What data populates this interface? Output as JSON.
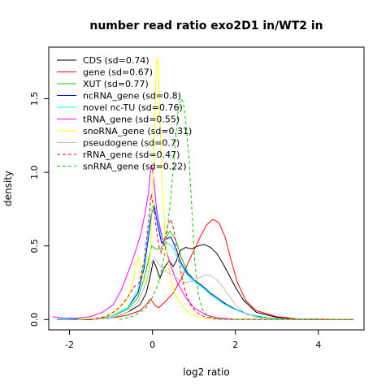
{
  "chart_data": {
    "type": "line",
    "title": "number read ratio exo2D1 in/WT2 in",
    "xlabel": "log2 ratio",
    "ylabel": "density",
    "xlim": [
      -2.5,
      5.1
    ],
    "ylim": [
      -0.07,
      1.85
    ],
    "x_ticks": [
      -2,
      0,
      2,
      4
    ],
    "x_tick_labels": [
      "-2",
      "0",
      "2",
      "4"
    ],
    "y_ticks": [
      0.0,
      0.5,
      1.0,
      1.5
    ],
    "y_tick_labels": [
      "0.0",
      "0.5",
      "1.0",
      "1.5"
    ],
    "grid": false,
    "legend_position": "top-left",
    "series": [
      {
        "name": "CDS (sd=0.74)",
        "color": "#000000",
        "dash": "solid",
        "points": [
          [
            -2.3,
            0
          ],
          [
            -1.5,
            0
          ],
          [
            -1,
            0.01
          ],
          [
            -0.6,
            0.05
          ],
          [
            -0.3,
            0.1
          ],
          [
            -0.15,
            0.18
          ],
          [
            -0.05,
            0.3
          ],
          [
            0.02,
            0.4
          ],
          [
            0.1,
            0.35
          ],
          [
            0.18,
            0.28
          ],
          [
            0.28,
            0.35
          ],
          [
            0.4,
            0.4
          ],
          [
            0.5,
            0.36
          ],
          [
            0.58,
            0.4
          ],
          [
            0.68,
            0.47
          ],
          [
            0.8,
            0.49
          ],
          [
            0.95,
            0.48
          ],
          [
            1.1,
            0.5
          ],
          [
            1.25,
            0.51
          ],
          [
            1.4,
            0.49
          ],
          [
            1.55,
            0.45
          ],
          [
            1.7,
            0.38
          ],
          [
            1.85,
            0.3
          ],
          [
            2.0,
            0.22
          ],
          [
            2.2,
            0.13
          ],
          [
            2.5,
            0.05
          ],
          [
            3,
            0.015
          ],
          [
            3.5,
            0.004
          ],
          [
            4.85,
            0
          ]
        ]
      },
      {
        "name": "gene (sd=0.67)",
        "color": "#ff0000",
        "dash": "solid",
        "points": [
          [
            -2.3,
            0
          ],
          [
            -1.5,
            0.005
          ],
          [
            -1,
            0.01
          ],
          [
            -0.6,
            0.03
          ],
          [
            -0.3,
            0.06
          ],
          [
            -0.15,
            0.1
          ],
          [
            -0.05,
            0.14
          ],
          [
            0.05,
            0.1
          ],
          [
            0.15,
            0.08
          ],
          [
            0.3,
            0.12
          ],
          [
            0.5,
            0.18
          ],
          [
            0.7,
            0.28
          ],
          [
            0.85,
            0.38
          ],
          [
            1.0,
            0.47
          ],
          [
            1.15,
            0.56
          ],
          [
            1.3,
            0.64
          ],
          [
            1.45,
            0.68
          ],
          [
            1.6,
            0.66
          ],
          [
            1.75,
            0.56
          ],
          [
            1.9,
            0.4
          ],
          [
            2.05,
            0.25
          ],
          [
            2.25,
            0.13
          ],
          [
            2.5,
            0.06
          ],
          [
            3,
            0.02
          ],
          [
            3.5,
            0.005
          ],
          [
            4.85,
            0
          ]
        ]
      },
      {
        "name": "XUT (sd=0.77)",
        "color": "#00cd00",
        "dash": "solid",
        "points": [
          [
            -2.3,
            0
          ],
          [
            -1.5,
            0.005
          ],
          [
            -1,
            0.02
          ],
          [
            -0.6,
            0.07
          ],
          [
            -0.35,
            0.15
          ],
          [
            -0.2,
            0.28
          ],
          [
            -0.1,
            0.4
          ],
          [
            -0.02,
            0.5
          ],
          [
            0.08,
            0.48
          ],
          [
            0.2,
            0.48
          ],
          [
            0.32,
            0.56
          ],
          [
            0.42,
            0.6
          ],
          [
            0.55,
            0.55
          ],
          [
            0.7,
            0.42
          ],
          [
            0.85,
            0.32
          ],
          [
            1.0,
            0.27
          ],
          [
            1.2,
            0.22
          ],
          [
            1.4,
            0.17
          ],
          [
            1.6,
            0.13
          ],
          [
            1.8,
            0.1
          ],
          [
            2.0,
            0.07
          ],
          [
            2.3,
            0.035
          ],
          [
            2.7,
            0.015
          ],
          [
            3.2,
            0.004
          ],
          [
            4.85,
            0
          ]
        ]
      },
      {
        "name": "ncRNA_gene (sd=0.8)",
        "color": "#0000ff",
        "dash": "solid",
        "points": [
          [
            -2.3,
            0
          ],
          [
            -1.5,
            0.005
          ],
          [
            -1,
            0.02
          ],
          [
            -0.6,
            0.08
          ],
          [
            -0.35,
            0.18
          ],
          [
            -0.2,
            0.35
          ],
          [
            -0.1,
            0.55
          ],
          [
            -0.02,
            0.72
          ],
          [
            0.05,
            0.76
          ],
          [
            0.12,
            0.65
          ],
          [
            0.22,
            0.52
          ],
          [
            0.35,
            0.55
          ],
          [
            0.45,
            0.56
          ],
          [
            0.58,
            0.47
          ],
          [
            0.7,
            0.38
          ],
          [
            0.85,
            0.31
          ],
          [
            1.0,
            0.27
          ],
          [
            1.2,
            0.23
          ],
          [
            1.4,
            0.18
          ],
          [
            1.6,
            0.14
          ],
          [
            1.8,
            0.1
          ],
          [
            2.0,
            0.07
          ],
          [
            2.3,
            0.035
          ],
          [
            2.7,
            0.012
          ],
          [
            3.2,
            0.004
          ],
          [
            4.85,
            0
          ]
        ]
      },
      {
        "name": "novel nc-TU (sd=0.76)",
        "color": "#00ffff",
        "dash": "solid",
        "points": [
          [
            -2.3,
            0
          ],
          [
            -1.5,
            0.005
          ],
          [
            -1,
            0.02
          ],
          [
            -0.6,
            0.08
          ],
          [
            -0.35,
            0.2
          ],
          [
            -0.2,
            0.38
          ],
          [
            -0.1,
            0.6
          ],
          [
            -0.02,
            0.75
          ],
          [
            0.05,
            0.78
          ],
          [
            0.12,
            0.68
          ],
          [
            0.22,
            0.55
          ],
          [
            0.35,
            0.52
          ],
          [
            0.48,
            0.5
          ],
          [
            0.6,
            0.42
          ],
          [
            0.75,
            0.34
          ],
          [
            0.9,
            0.28
          ],
          [
            1.1,
            0.24
          ],
          [
            1.3,
            0.2
          ],
          [
            1.5,
            0.15
          ],
          [
            1.7,
            0.11
          ],
          [
            1.9,
            0.08
          ],
          [
            2.2,
            0.045
          ],
          [
            2.6,
            0.015
          ],
          [
            3.2,
            0.004
          ],
          [
            4.85,
            0
          ]
        ]
      },
      {
        "name": "tRNA_gene (sd=0.55)",
        "color": "#ff00ff",
        "dash": "solid",
        "points": [
          [
            -2.4,
            0.02
          ],
          [
            -2.2,
            0.01
          ],
          [
            -1.8,
            0.01
          ],
          [
            -1.5,
            0.02
          ],
          [
            -1.2,
            0.05
          ],
          [
            -0.95,
            0.1
          ],
          [
            -0.75,
            0.2
          ],
          [
            -0.55,
            0.35
          ],
          [
            -0.4,
            0.47
          ],
          [
            -0.28,
            0.58
          ],
          [
            -0.18,
            0.72
          ],
          [
            -0.1,
            0.85
          ],
          [
            -0.05,
            1.0
          ],
          [
            -0.02,
            1.05
          ],
          [
            0.03,
            0.95
          ],
          [
            0.1,
            0.75
          ],
          [
            0.2,
            0.6
          ],
          [
            0.3,
            0.5
          ],
          [
            0.45,
            0.36
          ],
          [
            0.6,
            0.25
          ],
          [
            0.8,
            0.15
          ],
          [
            1.0,
            0.08
          ],
          [
            1.3,
            0.03
          ],
          [
            1.6,
            0.01
          ],
          [
            2,
            0.003
          ],
          [
            4.85,
            0
          ]
        ]
      },
      {
        "name": "snoRNA_gene (sd=0.31)",
        "color": "#ffff00",
        "dash": "solid",
        "points": [
          [
            -1.8,
            0
          ],
          [
            -1.3,
            0.01
          ],
          [
            -0.9,
            0.05
          ],
          [
            -0.6,
            0.14
          ],
          [
            -0.45,
            0.28
          ],
          [
            -0.35,
            0.42
          ],
          [
            -0.28,
            0.36
          ],
          [
            -0.2,
            0.25
          ],
          [
            -0.12,
            0.28
          ],
          [
            -0.05,
            0.45
          ],
          [
            0.0,
            0.8
          ],
          [
            0.05,
            1.3
          ],
          [
            0.09,
            1.7
          ],
          [
            0.11,
            1.78
          ],
          [
            0.14,
            1.72
          ],
          [
            0.18,
            1.35
          ],
          [
            0.24,
            0.9
          ],
          [
            0.32,
            0.5
          ],
          [
            0.42,
            0.3
          ],
          [
            0.55,
            0.17
          ],
          [
            0.7,
            0.1
          ],
          [
            0.9,
            0.04
          ],
          [
            1.2,
            0.01
          ],
          [
            1.6,
            0.002
          ],
          [
            4.85,
            0
          ]
        ]
      },
      {
        "name": "pseudogene (sd=0.7)",
        "color": "#bebebe",
        "dash": "solid",
        "points": [
          [
            -1.5,
            0
          ],
          [
            -1,
            0.01
          ],
          [
            -0.6,
            0.05
          ],
          [
            -0.35,
            0.12
          ],
          [
            -0.15,
            0.25
          ],
          [
            -0.05,
            0.38
          ],
          [
            0.05,
            0.42
          ],
          [
            0.2,
            0.36
          ],
          [
            0.35,
            0.32
          ],
          [
            0.5,
            0.3
          ],
          [
            0.65,
            0.27
          ],
          [
            0.8,
            0.25
          ],
          [
            0.95,
            0.26
          ],
          [
            1.1,
            0.28
          ],
          [
            1.25,
            0.3
          ],
          [
            1.4,
            0.3
          ],
          [
            1.55,
            0.27
          ],
          [
            1.7,
            0.22
          ],
          [
            1.85,
            0.16
          ],
          [
            2.0,
            0.1
          ],
          [
            2.2,
            0.05
          ],
          [
            2.5,
            0.015
          ],
          [
            3,
            0.003
          ],
          [
            4.85,
            0
          ]
        ]
      },
      {
        "name": "rRNA_gene (sd=0.47)",
        "color": "#ff0000",
        "dash": "dashed",
        "points": [
          [
            -1.5,
            0
          ],
          [
            -1.1,
            0.02
          ],
          [
            -0.8,
            0.08
          ],
          [
            -0.6,
            0.15
          ],
          [
            -0.45,
            0.22
          ],
          [
            -0.32,
            0.25
          ],
          [
            -0.2,
            0.4
          ],
          [
            -0.1,
            0.65
          ],
          [
            -0.03,
            0.85
          ],
          [
            0.02,
            0.78
          ],
          [
            0.08,
            0.65
          ],
          [
            0.15,
            0.5
          ],
          [
            0.22,
            0.45
          ],
          [
            0.3,
            0.55
          ],
          [
            0.38,
            0.65
          ],
          [
            0.45,
            0.68
          ],
          [
            0.52,
            0.6
          ],
          [
            0.6,
            0.45
          ],
          [
            0.7,
            0.3
          ],
          [
            0.8,
            0.18
          ],
          [
            0.92,
            0.1
          ],
          [
            1.05,
            0.05
          ],
          [
            1.25,
            0.02
          ],
          [
            1.5,
            0.005
          ],
          [
            2,
            0
          ],
          [
            4.85,
            0
          ]
        ]
      },
      {
        "name": "snRNA_gene (sd=0.22)",
        "color": "#00cd00",
        "dash": "dashed",
        "points": [
          [
            -0.8,
            0
          ],
          [
            -0.5,
            0.02
          ],
          [
            -0.3,
            0.05
          ],
          [
            -0.15,
            0.08
          ],
          [
            0.0,
            0.15
          ],
          [
            0.15,
            0.25
          ],
          [
            0.3,
            0.45
          ],
          [
            0.45,
            0.85
          ],
          [
            0.55,
            1.2
          ],
          [
            0.62,
            1.42
          ],
          [
            0.68,
            1.5
          ],
          [
            0.74,
            1.48
          ],
          [
            0.8,
            1.35
          ],
          [
            0.88,
            1.1
          ],
          [
            0.95,
            0.75
          ],
          [
            1.02,
            0.4
          ],
          [
            1.1,
            0.18
          ],
          [
            1.2,
            0.07
          ],
          [
            1.35,
            0.02
          ],
          [
            1.6,
            0.003
          ],
          [
            4.85,
            0
          ]
        ]
      }
    ]
  }
}
